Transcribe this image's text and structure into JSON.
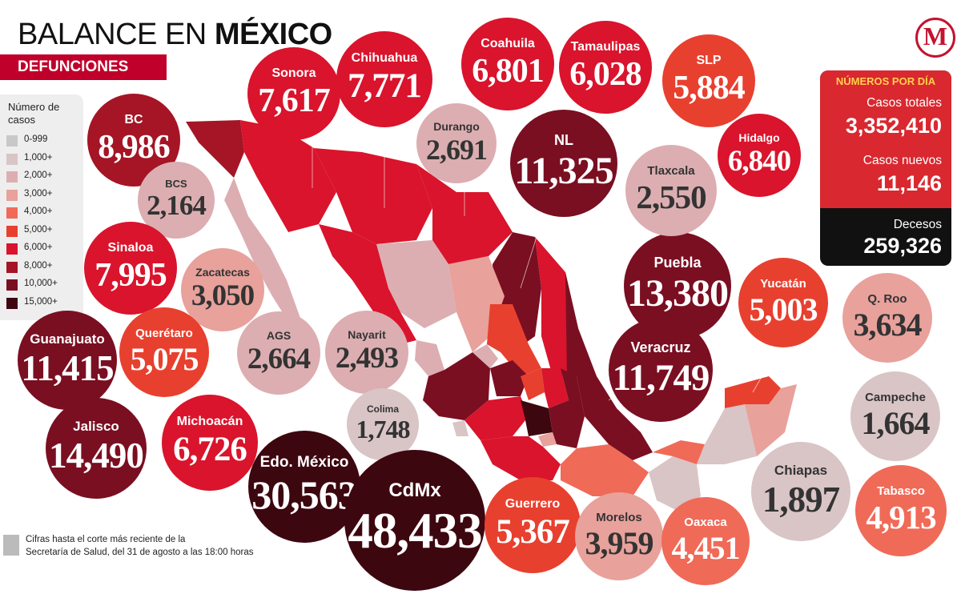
{
  "header": {
    "title_prefix": "BALANCE EN ",
    "title_bold": "MÉXICO",
    "subtitle": "DEFUNCIONES"
  },
  "logo": {
    "letter": "M"
  },
  "legend": {
    "title": "Número de casos",
    "items": [
      {
        "label": "0-999",
        "color": "#c8c8c8"
      },
      {
        "label": "1,000+",
        "color": "#d9c4c6"
      },
      {
        "label": "2,000+",
        "color": "#dcaeb1"
      },
      {
        "label": "3,000+",
        "color": "#e8a19b"
      },
      {
        "label": "4,000+",
        "color": "#f06a58"
      },
      {
        "label": "5,000+",
        "color": "#e8402f"
      },
      {
        "label": "6,000+",
        "color": "#d9142c"
      },
      {
        "label": "8,000+",
        "color": "#a51525"
      },
      {
        "label": "10,000+",
        "color": "#7a0f22"
      },
      {
        "label": "15,000+",
        "color": "#3d0710"
      }
    ]
  },
  "panel": {
    "title": "NÚMEROS POR DÍA",
    "casos_totales_label": "Casos totales",
    "casos_totales": "3,352,410",
    "casos_nuevos_label": "Casos nuevos",
    "casos_nuevos": "11,146",
    "decesos_label": "Decesos",
    "decesos": "259,326"
  },
  "states": [
    {
      "name": "BC",
      "value": "8,986",
      "color": "#a51525"
    },
    {
      "name": "BCS",
      "value": "2,164",
      "color": "#dcaeb1"
    },
    {
      "name": "Sinaloa",
      "value": "7,995",
      "color": "#d9142c"
    },
    {
      "name": "Zacatecas",
      "value": "3,050",
      "color": "#e8a19b"
    },
    {
      "name": "Guanajuato",
      "value": "11,415",
      "color": "#7a0f22"
    },
    {
      "name": "Querétaro",
      "value": "5,075",
      "color": "#e8402f"
    },
    {
      "name": "AGS",
      "value": "2,664",
      "color": "#dcaeb1"
    },
    {
      "name": "Nayarit",
      "value": "2,493",
      "color": "#dcaeb1"
    },
    {
      "name": "Jalisco",
      "value": "14,490",
      "color": "#7a0f22"
    },
    {
      "name": "Michoacán",
      "value": "6,726",
      "color": "#d9142c"
    },
    {
      "name": "Colima",
      "value": "1,748",
      "color": "#d9c4c6"
    },
    {
      "name": "Edo. México",
      "value": "30,563",
      "color": "#3d0710"
    },
    {
      "name": "CdMx",
      "value": "48,433",
      "color": "#3d0710"
    },
    {
      "name": "Guerrero",
      "value": "5,367",
      "color": "#e8402f"
    },
    {
      "name": "Morelos",
      "value": "3,959",
      "color": "#e8a19b"
    },
    {
      "name": "Oaxaca",
      "value": "4,451",
      "color": "#f06a58"
    },
    {
      "name": "Chiapas",
      "value": "1,897",
      "color": "#d9c4c6"
    },
    {
      "name": "Tabasco",
      "value": "4,913",
      "color": "#f06a58"
    },
    {
      "name": "Campeche",
      "value": "1,664",
      "color": "#d9c4c6"
    },
    {
      "name": "Q. Roo",
      "value": "3,634",
      "color": "#e8a19b"
    },
    {
      "name": "Yucatán",
      "value": "5,003",
      "color": "#e8402f"
    },
    {
      "name": "Veracruz",
      "value": "11,749",
      "color": "#7a0f22"
    },
    {
      "name": "Puebla",
      "value": "13,380",
      "color": "#7a0f22"
    },
    {
      "name": "Tlaxcala",
      "value": "2,550",
      "color": "#dcaeb1"
    },
    {
      "name": "Hidalgo",
      "value": "6,840",
      "color": "#d9142c"
    },
    {
      "name": "SLP",
      "value": "5,884",
      "color": "#e8402f"
    },
    {
      "name": "Tamaulipas",
      "value": "6,028",
      "color": "#d9142c"
    },
    {
      "name": "Coahuila",
      "value": "6,801",
      "color": "#d9142c"
    },
    {
      "name": "NL",
      "value": "11,325",
      "color": "#7a0f22"
    },
    {
      "name": "Durango",
      "value": "2,691",
      "color": "#dcaeb1"
    },
    {
      "name": "Chihuahua",
      "value": "7,771",
      "color": "#d9142c"
    },
    {
      "name": "Sonora",
      "value": "7,617",
      "color": "#d9142c"
    }
  ],
  "footnote": {
    "line1": "Cifras hasta el corte más reciente de la",
    "line2": "Secretaría de Salud, del 31 de agosto a las 18:00 horas"
  }
}
